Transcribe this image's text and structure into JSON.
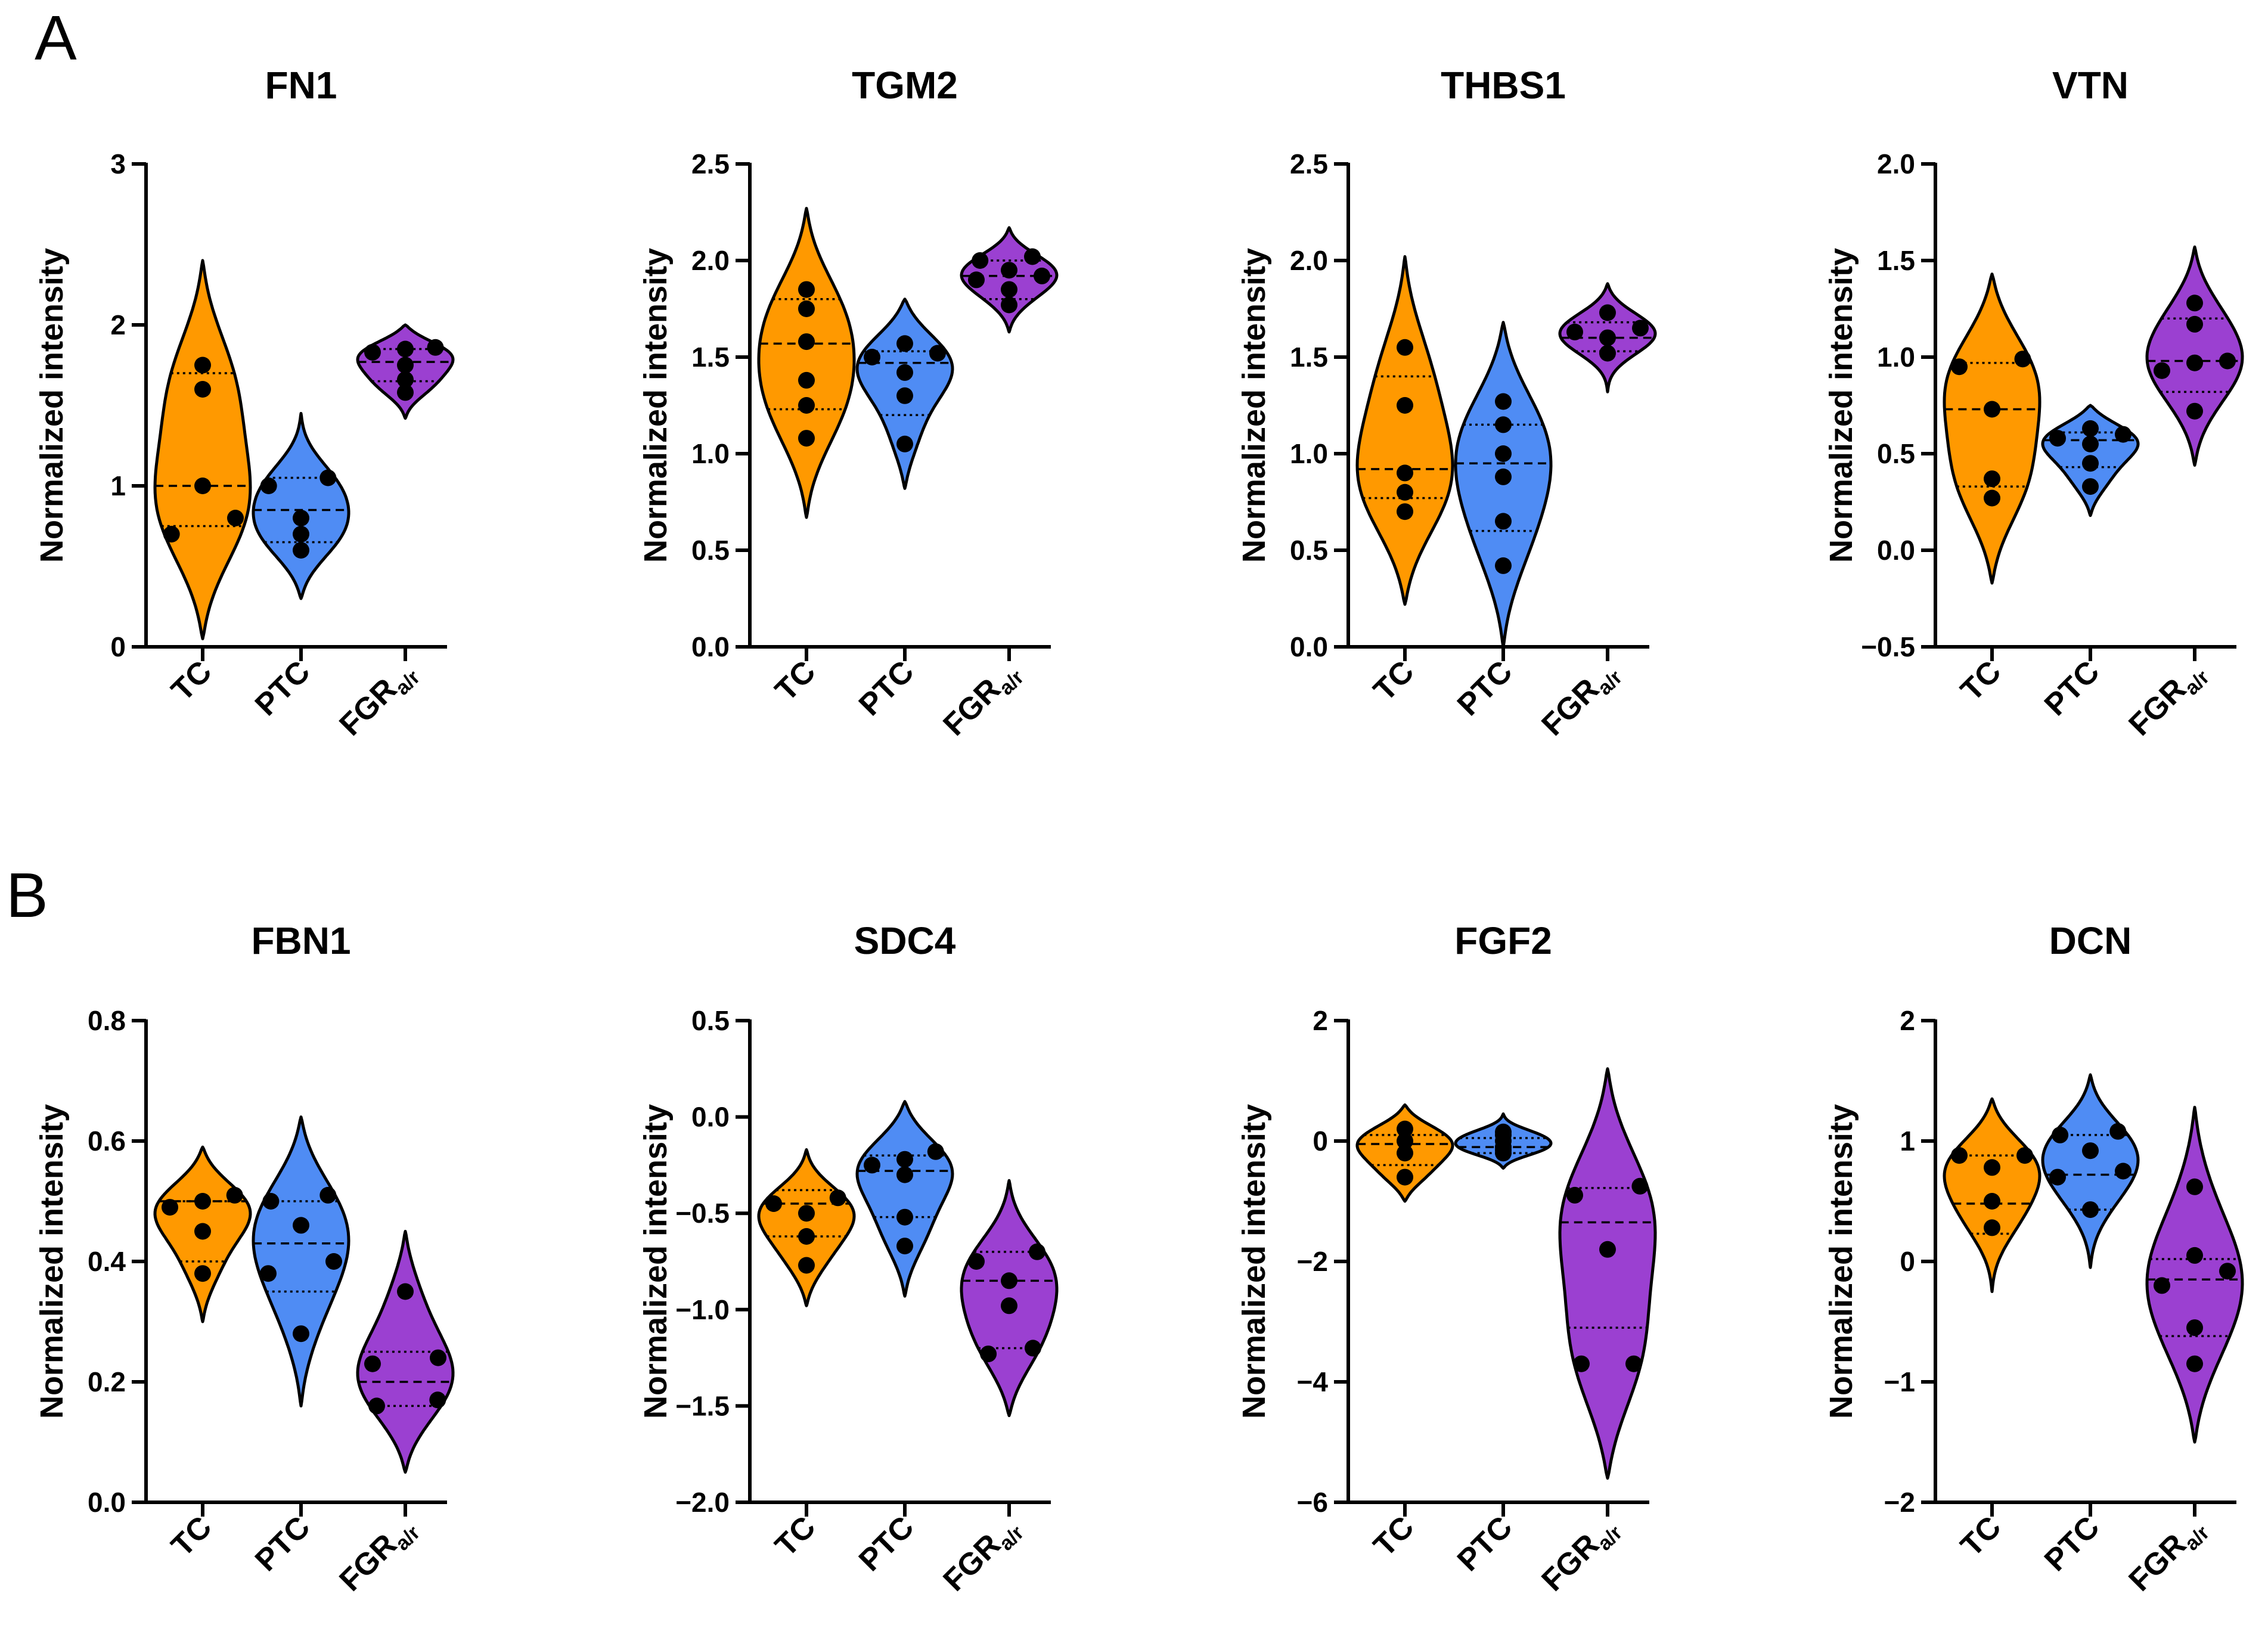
{
  "figure": {
    "ylabel": "Normalized intensity",
    "categories": [
      "TC",
      "PTC",
      "FGR"
    ],
    "category_subscripts": [
      "",
      "",
      "a/r"
    ],
    "series_colors": [
      "#FF9900",
      "#4F8CF4",
      "#9B40D1"
    ],
    "panels": [
      {
        "letter": "A",
        "chart_indices": [
          0,
          1,
          2,
          3
        ]
      },
      {
        "letter": "B",
        "chart_indices": [
          4,
          5,
          6,
          7
        ]
      }
    ]
  },
  "chart_data": [
    {
      "type": "violin",
      "title": "FN1",
      "ylabel": "Normalized intensity",
      "ylim": [
        0,
        3
      ],
      "yticks": [
        0,
        1,
        2,
        3
      ],
      "tick_labels": [
        "0",
        "1",
        "2",
        "3"
      ],
      "series": [
        {
          "name": "TC",
          "values": [
            0.7,
            0.8,
            1.0,
            1.6,
            1.75
          ],
          "median": 1.0,
          "q1": 0.75,
          "q3": 1.7,
          "range": [
            0.05,
            2.4
          ]
        },
        {
          "name": "PTC",
          "values": [
            0.6,
            0.7,
            0.8,
            1.0,
            1.05
          ],
          "median": 0.85,
          "q1": 0.65,
          "q3": 1.05,
          "range": [
            0.3,
            1.45
          ]
        },
        {
          "name": "FGRa/r",
          "values": [
            1.58,
            1.66,
            1.75,
            1.83,
            1.85,
            1.86
          ],
          "median": 1.77,
          "q1": 1.65,
          "q3": 1.85,
          "range": [
            1.42,
            2.0
          ]
        }
      ]
    },
    {
      "type": "violin",
      "title": "TGM2",
      "ylabel": "Normalized intensity",
      "ylim": [
        0,
        2.5
      ],
      "yticks": [
        0,
        0.5,
        1,
        1.5,
        2,
        2.5
      ],
      "tick_labels": [
        "0.0",
        "0.5",
        "1.0",
        "1.5",
        "2.0",
        "2.5"
      ],
      "series": [
        {
          "name": "TC",
          "values": [
            1.08,
            1.25,
            1.38,
            1.58,
            1.75,
            1.85
          ],
          "median": 1.57,
          "q1": 1.23,
          "q3": 1.8,
          "range": [
            0.67,
            2.27
          ]
        },
        {
          "name": "PTC",
          "values": [
            1.05,
            1.3,
            1.42,
            1.5,
            1.52,
            1.57
          ],
          "median": 1.47,
          "q1": 1.2,
          "q3": 1.53,
          "range": [
            0.82,
            1.8
          ]
        },
        {
          "name": "FGRa/r",
          "values": [
            1.77,
            1.85,
            1.9,
            1.92,
            1.95,
            2.0,
            2.02
          ],
          "median": 1.92,
          "q1": 1.8,
          "q3": 2.0,
          "range": [
            1.63,
            2.17
          ]
        }
      ]
    },
    {
      "type": "violin",
      "title": "THBS1",
      "ylabel": "Normalized intensity",
      "ylim": [
        0,
        2.5
      ],
      "yticks": [
        0,
        0.5,
        1,
        1.5,
        2,
        2.5
      ],
      "tick_labels": [
        "0.0",
        "0.5",
        "1.0",
        "1.5",
        "2.0",
        "2.5"
      ],
      "series": [
        {
          "name": "TC",
          "values": [
            0.7,
            0.8,
            0.9,
            1.25,
            1.55
          ],
          "median": 0.92,
          "q1": 0.77,
          "q3": 1.4,
          "range": [
            0.22,
            2.02
          ]
        },
        {
          "name": "PTC",
          "values": [
            0.42,
            0.65,
            0.88,
            1.0,
            1.15,
            1.27
          ],
          "median": 0.95,
          "q1": 0.6,
          "q3": 1.15,
          "range": [
            0.0,
            1.68
          ]
        },
        {
          "name": "FGRa/r",
          "values": [
            1.52,
            1.6,
            1.63,
            1.65,
            1.73
          ],
          "median": 1.6,
          "q1": 1.53,
          "q3": 1.68,
          "range": [
            1.32,
            1.88
          ]
        }
      ]
    },
    {
      "type": "violin",
      "title": "VTN",
      "ylabel": "Normalized intensity",
      "ylim": [
        -0.5,
        2.0
      ],
      "yticks": [
        -0.5,
        0,
        0.5,
        1,
        1.5,
        2
      ],
      "tick_labels": [
        "−0.5",
        "0.0",
        "0.5",
        "1.0",
        "1.5",
        "2.0"
      ],
      "series": [
        {
          "name": "TC",
          "values": [
            0.27,
            0.37,
            0.73,
            0.95,
            0.99
          ],
          "median": 0.73,
          "q1": 0.33,
          "q3": 0.97,
          "range": [
            -0.17,
            1.43
          ]
        },
        {
          "name": "PTC",
          "values": [
            0.33,
            0.45,
            0.55,
            0.58,
            0.6,
            0.63
          ],
          "median": 0.57,
          "q1": 0.43,
          "q3": 0.61,
          "range": [
            0.18,
            0.75
          ]
        },
        {
          "name": "FGRa/r",
          "values": [
            0.72,
            0.93,
            0.97,
            0.98,
            1.17,
            1.28
          ],
          "median": 0.98,
          "q1": 0.82,
          "q3": 1.2,
          "range": [
            0.44,
            1.57
          ]
        }
      ]
    },
    {
      "type": "violin",
      "title": "FBN1",
      "ylabel": "Normalized intensity",
      "ylim": [
        0,
        0.8
      ],
      "yticks": [
        0,
        0.2,
        0.4,
        0.6,
        0.8
      ],
      "tick_labels": [
        "0.0",
        "0.2",
        "0.4",
        "0.6",
        "0.8"
      ],
      "series": [
        {
          "name": "TC",
          "values": [
            0.38,
            0.45,
            0.49,
            0.5,
            0.51
          ],
          "median": 0.5,
          "q1": 0.4,
          "q3": 0.5,
          "range": [
            0.3,
            0.59
          ]
        },
        {
          "name": "PTC",
          "values": [
            0.28,
            0.38,
            0.4,
            0.46,
            0.5,
            0.51
          ],
          "median": 0.43,
          "q1": 0.35,
          "q3": 0.5,
          "range": [
            0.16,
            0.64
          ]
        },
        {
          "name": "FGRa/r",
          "values": [
            0.16,
            0.17,
            0.23,
            0.24,
            0.35
          ],
          "median": 0.2,
          "q1": 0.16,
          "q3": 0.25,
          "range": [
            0.05,
            0.45
          ]
        }
      ]
    },
    {
      "type": "violin",
      "title": "SDC4",
      "ylabel": "Normalized intensity",
      "ylim": [
        -2.0,
        0.5
      ],
      "yticks": [
        -2,
        -1.5,
        -1,
        -0.5,
        0,
        0.5
      ],
      "tick_labels": [
        "−2.0",
        "−1.5",
        "−1.0",
        "−0.5",
        "0.0",
        "0.5"
      ],
      "series": [
        {
          "name": "TC",
          "values": [
            -0.77,
            -0.62,
            -0.5,
            -0.45,
            -0.42
          ],
          "median": -0.45,
          "q1": -0.62,
          "q3": -0.38,
          "range": [
            -0.98,
            -0.17
          ]
        },
        {
          "name": "PTC",
          "values": [
            -0.67,
            -0.52,
            -0.3,
            -0.25,
            -0.22,
            -0.18
          ],
          "median": -0.28,
          "q1": -0.52,
          "q3": -0.2,
          "range": [
            -0.93,
            0.08
          ]
        },
        {
          "name": "FGRa/r",
          "values": [
            -1.23,
            -1.2,
            -0.98,
            -0.85,
            -0.75,
            -0.7
          ],
          "median": -0.85,
          "q1": -1.2,
          "q3": -0.7,
          "range": [
            -1.55,
            -0.33
          ]
        }
      ]
    },
    {
      "type": "violin",
      "title": "FGF2",
      "ylabel": "Normalized intensity",
      "ylim": [
        -6,
        2
      ],
      "yticks": [
        -6,
        -4,
        -2,
        0,
        2
      ],
      "tick_labels": [
        "−6",
        "−4",
        "−2",
        "0",
        "2"
      ],
      "series": [
        {
          "name": "TC",
          "values": [
            -0.6,
            -0.2,
            0.0,
            0.2
          ],
          "median": -0.05,
          "q1": -0.4,
          "q3": 0.1,
          "range": [
            -1.0,
            0.6
          ]
        },
        {
          "name": "PTC",
          "values": [
            -0.2,
            -0.15,
            -0.1,
            0.0,
            0.1,
            0.15
          ],
          "median": -0.1,
          "q1": -0.2,
          "q3": 0.05,
          "range": [
            -0.45,
            0.45
          ]
        },
        {
          "name": "FGRa/r",
          "values": [
            -3.7,
            -3.7,
            -1.8,
            -0.9,
            -0.75
          ],
          "median": -1.35,
          "q1": -3.1,
          "q3": -0.78,
          "range": [
            -5.6,
            1.2
          ]
        }
      ]
    },
    {
      "type": "violin",
      "title": "DCN",
      "ylabel": "Normalized intensity",
      "ylim": [
        -2,
        2
      ],
      "yticks": [
        -2,
        -1,
        0,
        1,
        2
      ],
      "tick_labels": [
        "−2",
        "−1",
        "0",
        "1",
        "2"
      ],
      "series": [
        {
          "name": "TC",
          "values": [
            0.28,
            0.5,
            0.78,
            0.88,
            0.88
          ],
          "median": 0.48,
          "q1": 0.23,
          "q3": 0.88,
          "range": [
            -0.25,
            1.35
          ]
        },
        {
          "name": "PTC",
          "values": [
            0.43,
            0.7,
            0.75,
            0.92,
            1.05,
            1.08
          ],
          "median": 0.72,
          "q1": 0.43,
          "q3": 1.05,
          "range": [
            -0.05,
            1.55
          ]
        },
        {
          "name": "FGRa/r",
          "values": [
            -0.85,
            -0.55,
            -0.2,
            -0.08,
            0.05,
            0.62
          ],
          "median": -0.15,
          "q1": -0.62,
          "q3": 0.02,
          "range": [
            -1.5,
            1.28
          ]
        }
      ]
    }
  ]
}
